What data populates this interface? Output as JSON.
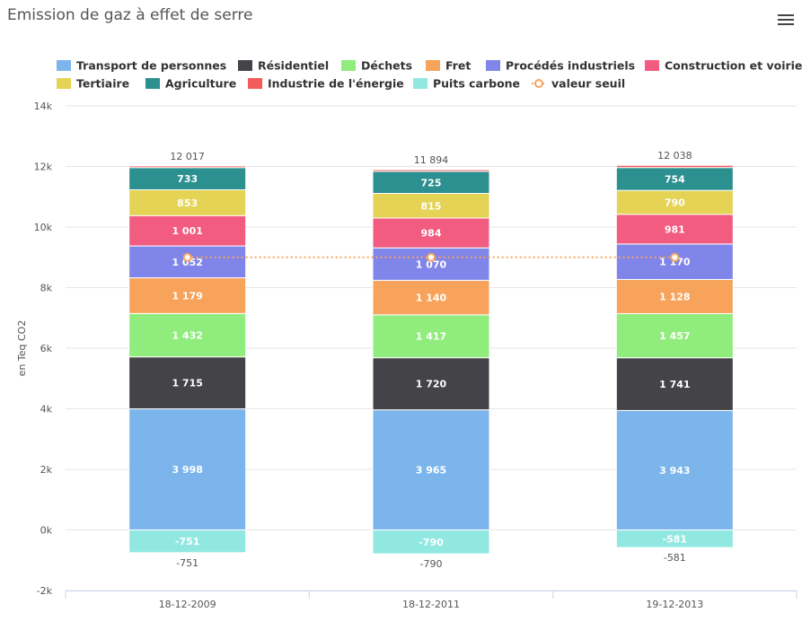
{
  "chart_data": {
    "type": "bar",
    "stacked": true,
    "title": "Emission de gaz à effet de serre",
    "ylabel": "en Teq CO2",
    "xlabel": "",
    "ylim": [
      -2000,
      14000
    ],
    "y_ticks": [
      -2000,
      0,
      2000,
      4000,
      6000,
      8000,
      10000,
      12000,
      14000
    ],
    "y_tick_labels": [
      "-2k",
      "0k",
      "2k",
      "4k",
      "6k",
      "8k",
      "10k",
      "12k",
      "14k"
    ],
    "grid": true,
    "legend_position": "top",
    "categories": [
      "18-12-2009",
      "18-12-2011",
      "19-12-2013"
    ],
    "series": [
      {
        "name": "Transport de personnes",
        "color": "#7cb5ec",
        "values": [
          3998,
          3965,
          3943
        ],
        "labels": [
          "3 998",
          "3 965",
          "3 943"
        ]
      },
      {
        "name": "Résidentiel",
        "color": "#434348",
        "values": [
          1715,
          1720,
          1741
        ],
        "labels": [
          "1 715",
          "1 720",
          "1 741"
        ]
      },
      {
        "name": "Déchets",
        "color": "#90ed7d",
        "values": [
          1432,
          1417,
          1457
        ],
        "labels": [
          "1 432",
          "1 417",
          "1 457"
        ]
      },
      {
        "name": "Fret",
        "color": "#f7a35c",
        "values": [
          1179,
          1140,
          1128
        ],
        "labels": [
          "1 179",
          "1 140",
          "1 128"
        ]
      },
      {
        "name": "Procédés industriels",
        "color": "#8085e9",
        "values": [
          1052,
          1070,
          1170
        ],
        "labels": [
          "1 052",
          "1 070",
          "1 170"
        ]
      },
      {
        "name": "Construction et voirie",
        "color": "#f15c80",
        "values": [
          1001,
          984,
          981
        ],
        "labels": [
          "1 001",
          "984",
          "981"
        ]
      },
      {
        "name": "Tertiaire",
        "color": "#e4d354",
        "values": [
          853,
          815,
          790
        ],
        "labels": [
          "853",
          "815",
          "790"
        ]
      },
      {
        "name": "Agriculture",
        "color": "#2b908f",
        "values": [
          733,
          725,
          754
        ],
        "labels": [
          "733",
          "725",
          "754"
        ]
      },
      {
        "name": "Industrie de l'énergie",
        "color": "#f45b5b",
        "values": [
          54,
          58,
          74
        ],
        "labels": [
          "",
          "",
          ""
        ]
      },
      {
        "name": "Puits carbone",
        "color": "#91e8e1",
        "values": [
          -751,
          -790,
          -581
        ],
        "labels": [
          "-751",
          "-790",
          "-581"
        ]
      }
    ],
    "stack_totals_positive": [
      "12 017",
      "11 894",
      "12 038"
    ],
    "stack_totals_negative": [
      "-751",
      "-790",
      "-581"
    ],
    "threshold": {
      "name": "valeur seuil",
      "color": "#f7a35c",
      "values": [
        9000,
        9000,
        9000
      ]
    }
  }
}
